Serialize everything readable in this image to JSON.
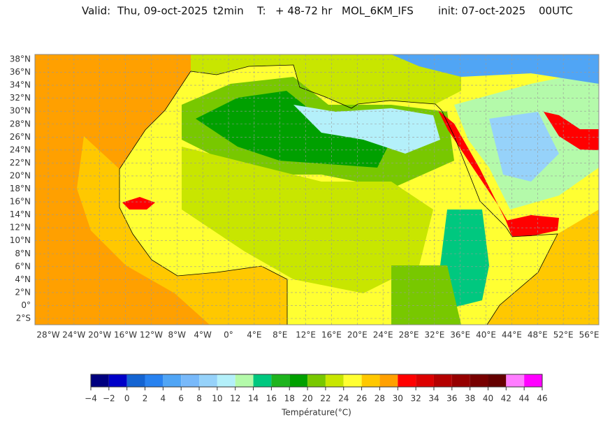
{
  "header": {
    "valid_label": "Valid:",
    "valid_date": "Thu, 09-oct-2025",
    "variable": "t2min",
    "range_label": "T:",
    "range": "+ 48-72 hr",
    "model": "MOL_6KM_IFS",
    "init": "init: 07-oct-2025",
    "run": "00UTC"
  },
  "map": {
    "lat_labels": [
      "38°N",
      "36°N",
      "34°N",
      "32°N",
      "30°N",
      "28°N",
      "26°N",
      "24°N",
      "22°N",
      "20°N",
      "18°N",
      "16°N",
      "14°N",
      "12°N",
      "10°N",
      "8°N",
      "6°N",
      "4°N",
      "2°N",
      "0°",
      "2°S"
    ],
    "lon_labels": [
      "28°W",
      "24°W",
      "20°W",
      "16°W",
      "12°W",
      "8°W",
      "4°W",
      "0°",
      "4°E",
      "8°E",
      "12°E",
      "16°E",
      "20°E",
      "24°E",
      "28°E",
      "32°E",
      "36°E",
      "40°E",
      "44°E",
      "48°E",
      "52°E",
      "56°E"
    ]
  },
  "colorbar": {
    "label": "Température(°C)",
    "ticks": [
      "−4",
      "−2",
      "0",
      "2",
      "4",
      "6",
      "8",
      "10",
      "12",
      "14",
      "16",
      "18",
      "20",
      "22",
      "24",
      "26",
      "28",
      "30",
      "32",
      "34",
      "36",
      "38",
      "40",
      "42",
      "44",
      "46"
    ],
    "colors": [
      "#00007f",
      "#0000c8",
      "#1464d2",
      "#2882f0",
      "#50a5f5",
      "#78b9fa",
      "#96d2fa",
      "#b4f0fa",
      "#b4faaa",
      "#00c87f",
      "#1eb41e",
      "#00a000",
      "#78c800",
      "#c8e600",
      "#ffff32",
      "#ffc800",
      "#ffa000",
      "#ff0000",
      "#dc0000",
      "#b40000",
      "#960000",
      "#780000",
      "#640000",
      "#ff7dff",
      "#ff00ff",
      "#a000a0",
      "#7d64ff"
    ]
  }
}
